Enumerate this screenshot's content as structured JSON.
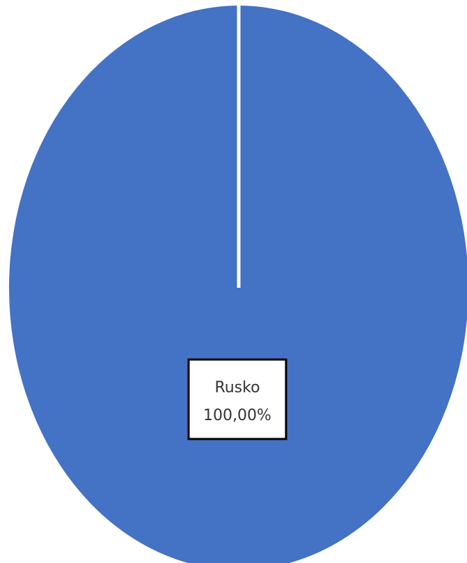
{
  "chart_data": {
    "type": "pie",
    "title": "",
    "slices": [
      {
        "category": "Rusko",
        "value": 100.0,
        "label": "100,00%",
        "color": "#4472C4"
      }
    ],
    "legend": "none",
    "data_labels": "inside"
  }
}
